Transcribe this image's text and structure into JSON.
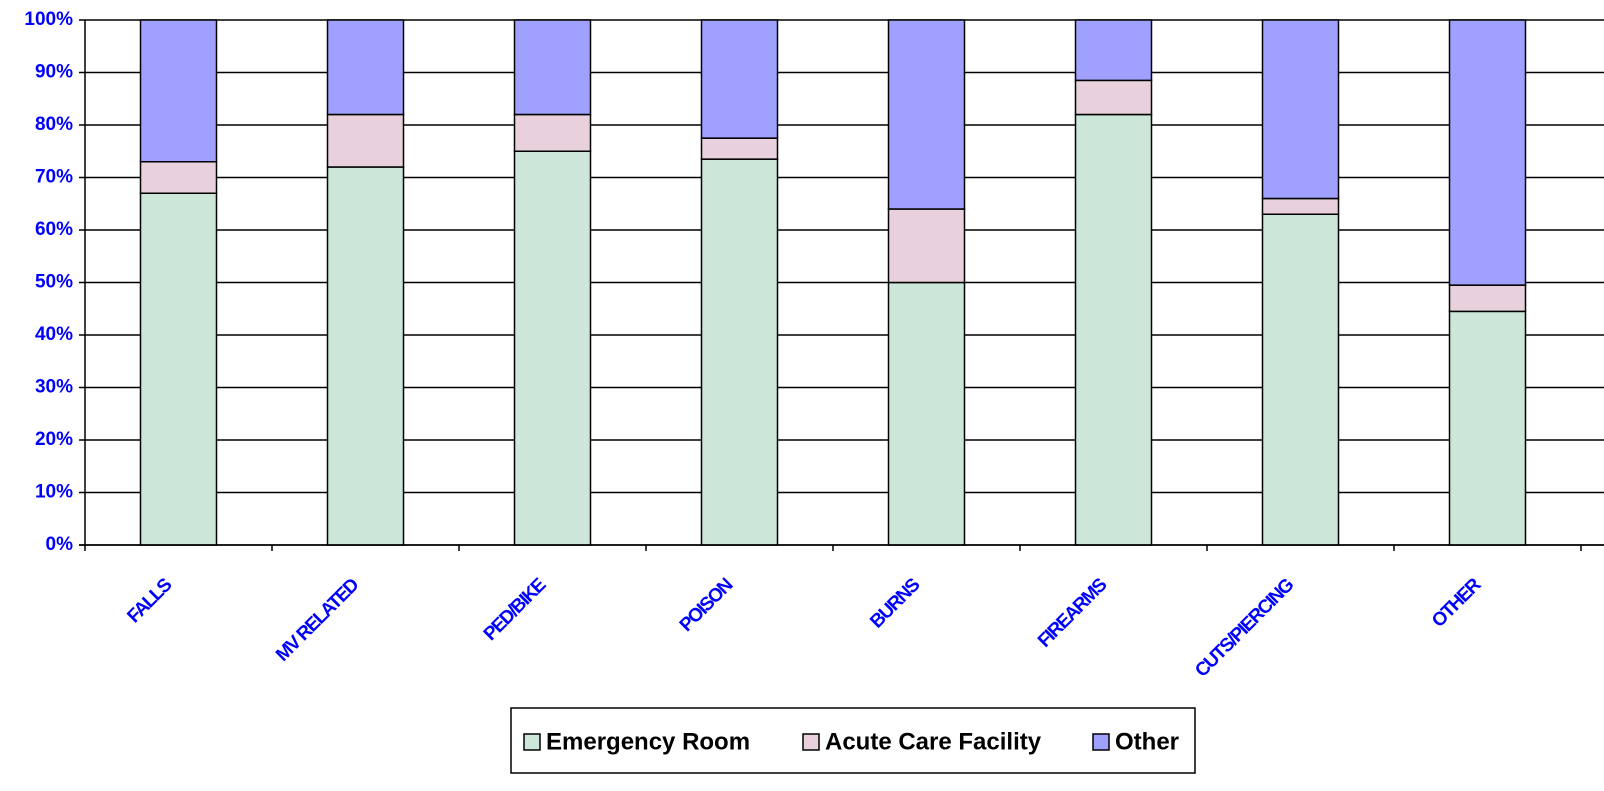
{
  "chart_data": {
    "type": "stacked_bar",
    "categories": [
      "FALLS",
      "MV RELATED",
      "PED/BIKE",
      "POISON",
      "BURNS",
      "FIREARMS",
      "CUTS/PIERCING",
      "OTHER"
    ],
    "series": [
      {
        "name": "Emergency Room",
        "color": "#cce6da",
        "values": [
          67,
          72,
          75,
          73.5,
          50,
          82,
          63,
          44.5
        ]
      },
      {
        "name": "Acute Care Facility",
        "color": "#e8d0dc",
        "values": [
          6,
          10,
          7,
          4,
          14,
          6.5,
          3,
          5
        ]
      },
      {
        "name": "Other",
        "color": "#a0a0ff",
        "values": [
          27,
          18,
          18,
          22.5,
          36,
          11.5,
          34,
          50.5
        ]
      }
    ],
    "ylim": [
      0,
      100
    ],
    "yticks": [
      {
        "value": 0,
        "label": "0%"
      },
      {
        "value": 10,
        "label": "10%"
      },
      {
        "value": 20,
        "label": "20%"
      },
      {
        "value": 30,
        "label": "30%"
      },
      {
        "value": 40,
        "label": "40%"
      },
      {
        "value": 50,
        "label": "50%"
      },
      {
        "value": 60,
        "label": "60%"
      },
      {
        "value": 70,
        "label": "70%"
      },
      {
        "value": 80,
        "label": "80%"
      },
      {
        "value": 90,
        "label": "90%"
      },
      {
        "value": 100,
        "label": "100%"
      }
    ],
    "grid": true
  }
}
